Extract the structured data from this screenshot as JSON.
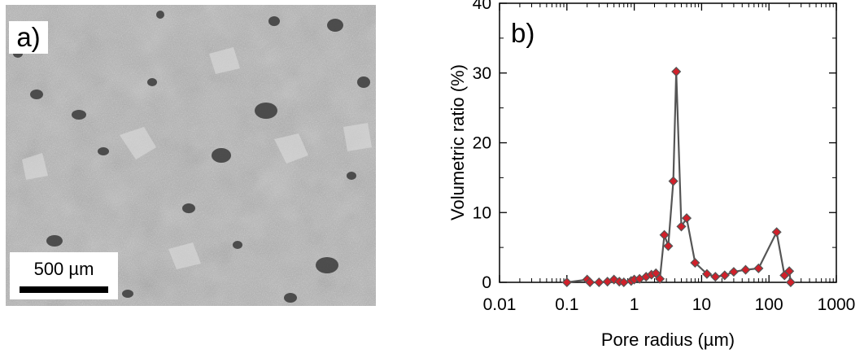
{
  "panel_a": {
    "label": "a)",
    "scale_bar_label": "500 µm"
  },
  "chart_data": {
    "type": "line",
    "panel_label": "b)",
    "title": "",
    "xlabel": "Pore radius (µm)",
    "ylabel": "Volumetric ratio (%)",
    "x_scale": "log",
    "xlim": [
      0.01,
      1000
    ],
    "ylim": [
      0,
      40
    ],
    "x_ticks": [
      0.01,
      0.1,
      1,
      10,
      100,
      1000
    ],
    "x_tick_labels": [
      "0.01",
      "0.1",
      "1",
      "10",
      "100",
      "1000"
    ],
    "y_ticks": [
      0,
      10,
      20,
      30,
      40
    ],
    "y_tick_labels": [
      "0",
      "10",
      "20",
      "30",
      "40"
    ],
    "grid": false,
    "legend": "none",
    "line_color": "#555555",
    "marker_color": "#d0202a",
    "marker": "diamond",
    "series": [
      {
        "x": [
          0.1,
          0.2,
          0.22,
          0.3,
          0.4,
          0.5,
          0.6,
          0.7,
          0.9,
          1.0,
          1.2,
          1.5,
          1.8,
          2.1,
          2.4,
          2.8,
          3.2,
          3.8,
          4.2,
          5.0,
          6.0,
          8.0,
          12.0,
          16.0,
          22.0,
          30.0,
          45.0,
          70.0,
          130.0,
          170.0,
          200.0,
          210.0
        ],
        "y": [
          0.0,
          0.4,
          0.0,
          0.0,
          0.1,
          0.4,
          0.1,
          0.0,
          0.2,
          0.4,
          0.5,
          0.8,
          1.1,
          1.3,
          0.5,
          6.8,
          5.2,
          14.5,
          30.2,
          8.0,
          9.2,
          2.8,
          1.2,
          0.8,
          1.0,
          1.5,
          1.8,
          2.0,
          7.2,
          1.0,
          1.6,
          0.0
        ]
      }
    ]
  }
}
